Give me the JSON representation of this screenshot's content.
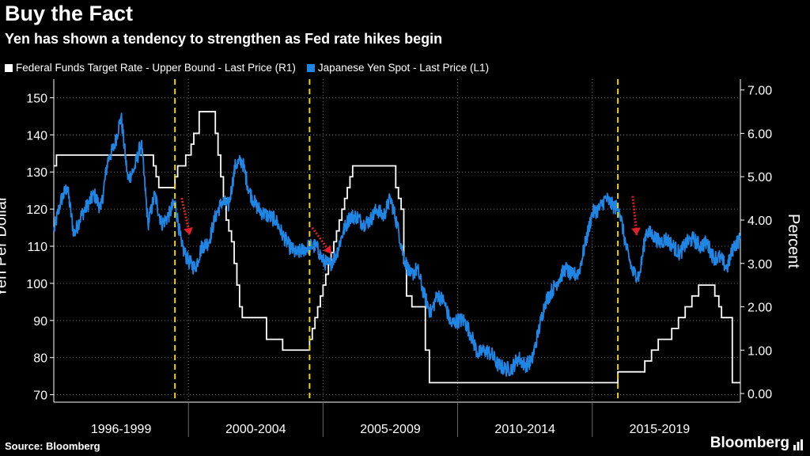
{
  "header": {
    "title": "Buy the Fact",
    "subtitle": "Yen has shown a tendency to strengthen as Fed rate hikes begin"
  },
  "footer": {
    "source": "Source: Bloomberg",
    "brand": "Bloomberg"
  },
  "colors": {
    "fed": "#ffffff",
    "yen": "#1f86e6",
    "hike_marker": "#e8d21b",
    "arrow": "#e0202a",
    "grid": "#6a6a6a"
  },
  "chart_data": {
    "type": "line",
    "title": "Buy the Fact",
    "legend": [
      "Federal Funds Target Rate - Upper Bound - Last Price (R1)",
      "Japanese Yen Spot - Last Price (L1)"
    ],
    "legend_position": "top-left",
    "xlim": [
      1995.0,
      2020.5
    ],
    "x_tick_labels": [
      {
        "label": "1996-1999",
        "x": 1997.5
      },
      {
        "label": "2000-2004",
        "x": 2002.5
      },
      {
        "label": "2005-2009",
        "x": 2007.5
      },
      {
        "label": "2010-2014",
        "x": 2012.5
      },
      {
        "label": "2015-2019",
        "x": 2017.5
      }
    ],
    "x_tick_separators": [
      2000.0,
      2005.0,
      2010.0,
      2015.0
    ],
    "left_axis": {
      "label": "Yen Per Dollar",
      "lim": [
        68,
        155
      ],
      "ticks": [
        70,
        80,
        90,
        100,
        110,
        120,
        130,
        140,
        150
      ]
    },
    "right_axis": {
      "label": "Percent",
      "lim": [
        -0.2,
        7.25
      ],
      "ticks": [
        "0.00",
        "1.00",
        "2.00",
        "3.00",
        "4.00",
        "5.00",
        "6.00",
        "7.00"
      ]
    },
    "grid": true,
    "hike_start_markers": [
      1999.5,
      2004.5,
      2015.95
    ],
    "arrows": [
      {
        "from": [
          1999.75,
          123
        ],
        "to": [
          2000.05,
          113
        ]
      },
      {
        "from": [
          2004.6,
          115
        ],
        "to": [
          2005.3,
          108
        ]
      },
      {
        "from": [
          2016.5,
          123.5
        ],
        "to": [
          2016.65,
          113
        ]
      }
    ],
    "series": [
      {
        "name": "Federal Funds Target Rate - Upper Bound - Last Price (R1)",
        "axis": "right",
        "step": true,
        "x": [
          1995.0,
          1995.1,
          1995.5,
          1996.1,
          1998.7,
          1998.8,
          1998.9,
          1999.5,
          1999.6,
          1999.9,
          2000.1,
          2000.2,
          2000.4,
          2001.0,
          2001.1,
          2001.2,
          2001.3,
          2001.4,
          2001.5,
          2001.6,
          2001.7,
          2001.8,
          2001.9,
          2002.0,
          2002.9,
          2003.5,
          2004.5,
          2004.6,
          2004.7,
          2004.8,
          2004.9,
          2005.0,
          2005.1,
          2005.2,
          2005.3,
          2005.4,
          2005.5,
          2005.6,
          2005.7,
          2005.8,
          2005.9,
          2006.0,
          2006.1,
          2006.2,
          2006.3,
          2006.5,
          2007.7,
          2007.8,
          2007.9,
          2008.0,
          2008.1,
          2008.3,
          2008.8,
          2008.95,
          2015.95,
          2016.95,
          2017.2,
          2017.45,
          2017.95,
          2018.2,
          2018.45,
          2018.7,
          2018.95,
          2019.55,
          2019.7,
          2019.8,
          2020.2,
          2020.5
        ],
        "values": [
          5.25,
          5.5,
          5.5,
          5.5,
          5.25,
          5.0,
          4.75,
          5.0,
          5.25,
          5.5,
          5.75,
          6.0,
          6.5,
          6.0,
          5.5,
          5.0,
          4.5,
          4.0,
          3.75,
          3.5,
          3.0,
          2.5,
          2.0,
          1.75,
          1.25,
          1.0,
          1.25,
          1.5,
          1.75,
          2.0,
          2.25,
          2.5,
          2.75,
          3.0,
          3.25,
          3.5,
          3.75,
          4.0,
          4.25,
          4.5,
          4.75,
          5.0,
          5.25,
          5.25,
          5.25,
          5.25,
          4.75,
          4.5,
          4.25,
          3.0,
          2.25,
          2.0,
          1.0,
          0.25,
          0.5,
          0.75,
          1.0,
          1.25,
          1.5,
          1.75,
          2.0,
          2.25,
          2.5,
          2.25,
          2.0,
          1.75,
          0.25,
          0.25
        ]
      },
      {
        "name": "Japanese Yen Spot - Last Price (L1)",
        "axis": "left",
        "step": false,
        "x": [
          1995.0,
          1995.25,
          1995.5,
          1995.75,
          1996.0,
          1996.25,
          1996.5,
          1996.75,
          1997.0,
          1997.25,
          1997.5,
          1997.75,
          1998.0,
          1998.25,
          1998.5,
          1998.75,
          1999.0,
          1999.25,
          1999.5,
          1999.75,
          2000.0,
          2000.25,
          2000.5,
          2000.75,
          2001.0,
          2001.25,
          2001.5,
          2001.75,
          2002.0,
          2002.25,
          2002.5,
          2002.75,
          2003.0,
          2003.25,
          2003.5,
          2003.75,
          2004.0,
          2004.25,
          2004.5,
          2004.75,
          2005.0,
          2005.25,
          2005.5,
          2005.75,
          2006.0,
          2006.25,
          2006.5,
          2006.75,
          2007.0,
          2007.25,
          2007.5,
          2007.75,
          2008.0,
          2008.25,
          2008.5,
          2008.75,
          2009.0,
          2009.25,
          2009.5,
          2009.75,
          2010.0,
          2010.25,
          2010.5,
          2010.75,
          2011.0,
          2011.25,
          2011.5,
          2011.75,
          2012.0,
          2012.25,
          2012.5,
          2012.75,
          2013.0,
          2013.25,
          2013.5,
          2013.75,
          2014.0,
          2014.25,
          2014.5,
          2014.75,
          2015.0,
          2015.25,
          2015.5,
          2015.75,
          2016.0,
          2016.25,
          2016.5,
          2016.75,
          2017.0,
          2017.25,
          2017.5,
          2017.75,
          2018.0,
          2018.25,
          2018.5,
          2018.75,
          2019.0,
          2019.25,
          2019.5,
          2019.75,
          2020.0,
          2020.25,
          2020.5
        ],
        "values": [
          114,
          122,
          126,
          113,
          118,
          121,
          124,
          120,
          133,
          137,
          145,
          128,
          131,
          138,
          116,
          124,
          116,
          118,
          122,
          110,
          106,
          104,
          110,
          111,
          118,
          122,
          121,
          132,
          133,
          125,
          121,
          119,
          118,
          117,
          113,
          110,
          108,
          109,
          110,
          110,
          106,
          105,
          108,
          114,
          118,
          118,
          116,
          117,
          120,
          118,
          123,
          116,
          107,
          102,
          104,
          97,
          92,
          97,
          95,
          89,
          90,
          90,
          86,
          81,
          82,
          81,
          78,
          77,
          77,
          80,
          78,
          79,
          87,
          95,
          98,
          101,
          104,
          102,
          103,
          111,
          119,
          120,
          123,
          121,
          120,
          110,
          103,
          102,
          114,
          113,
          111,
          112,
          110,
          108,
          111,
          112,
          110,
          111,
          107,
          107,
          104,
          110,
          112
        ]
      }
    ]
  }
}
